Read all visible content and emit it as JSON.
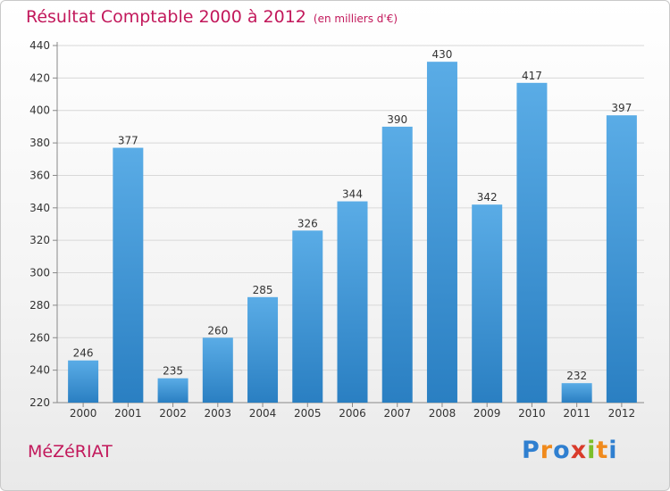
{
  "title": "Résultat Comptable 2000 à 2012",
  "subtitle": "(en milliers d'€)",
  "commune": "MéZéRIAT",
  "logo": {
    "letters": [
      "P",
      "r",
      "o",
      "x",
      "i",
      "t",
      "i"
    ],
    "colors": [
      "#2f7fd0",
      "#f08a1c",
      "#2f7fd0",
      "#d93b2b",
      "#7bbf2a",
      "#f08a1c",
      "#2f7fd0"
    ]
  },
  "colors": {
    "accent": "#c2185b",
    "bar_top": "#5aace6",
    "bar_bottom": "#2a7fc2",
    "grid": "#d8d8d8"
  },
  "chart_data": {
    "type": "bar",
    "title": "Résultat Comptable 2000 à 2012",
    "subtitle": "(en milliers d'€)",
    "categories": [
      "2000",
      "2001",
      "2002",
      "2003",
      "2004",
      "2005",
      "2006",
      "2007",
      "2008",
      "2009",
      "2010",
      "2011",
      "2012"
    ],
    "values": [
      246,
      377,
      235,
      260,
      285,
      326,
      344,
      390,
      430,
      342,
      417,
      232,
      397
    ],
    "ylim": [
      220,
      440
    ],
    "yticks": [
      220,
      240,
      260,
      280,
      300,
      320,
      340,
      360,
      380,
      400,
      420,
      440
    ],
    "xlabel": "",
    "ylabel": "",
    "grid": true
  }
}
